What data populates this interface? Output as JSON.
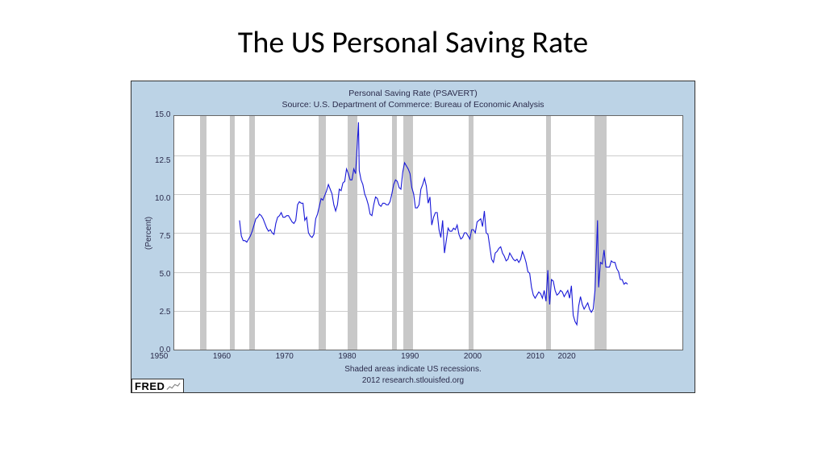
{
  "slide": {
    "title": "The US Personal Saving Rate",
    "title_fontsize": 38,
    "title_color": "#000000"
  },
  "chart": {
    "type": "line",
    "outer_background": "#bcd3e6",
    "plot_background": "#ffffff",
    "border_color": "#333333",
    "grid_color": "#cccccc",
    "title_line1": "Personal Saving Rate (PSAVERT)",
    "title_line2": "Source: U.S. Department of Commerce: Bureau of Economic Analysis",
    "title_fontsize": 10.5,
    "title_color": "#2a2a4a",
    "ylabel": "(Percent)",
    "label_fontsize": 10,
    "xlim": [
      1950,
      2020
    ],
    "ylim": [
      0,
      15
    ],
    "ytick_step": 2.5,
    "yticks": [
      "15.0",
      "12.5",
      "10.0",
      "7.5",
      "5.0",
      "2.5",
      "0.0"
    ],
    "xtick_step": 10,
    "xticks": [
      "1950",
      "1960",
      "1970",
      "1980",
      "1990",
      "2000",
      "2010",
      "2020"
    ],
    "line_color": "#1818d8",
    "line_width": 1.1,
    "recession_color": "#c8c8c8",
    "recessions": [
      [
        1953.5,
        1954.4
      ],
      [
        1957.6,
        1958.3
      ],
      [
        1960.3,
        1961.1
      ],
      [
        1969.9,
        1970.9
      ],
      [
        1973.9,
        1975.2
      ],
      [
        1980.0,
        1980.6
      ],
      [
        1981.5,
        1982.9
      ],
      [
        1990.5,
        1991.2
      ],
      [
        2001.2,
        2001.9
      ],
      [
        2007.9,
        2009.5
      ]
    ],
    "footer_line1": "Shaded areas indicate US recessions.",
    "footer_line2": "2012 research.stlouisfed.org",
    "footer_fontsize": 10,
    "logo_text": "FRED",
    "series": [
      [
        1959.0,
        8.3
      ],
      [
        1959.25,
        7.3
      ],
      [
        1959.5,
        7.0
      ],
      [
        1959.75,
        7.0
      ],
      [
        1960.0,
        6.9
      ],
      [
        1960.25,
        7.1
      ],
      [
        1960.5,
        7.3
      ],
      [
        1960.75,
        7.6
      ],
      [
        1961.0,
        8.0
      ],
      [
        1961.25,
        8.4
      ],
      [
        1961.5,
        8.5
      ],
      [
        1961.75,
        8.7
      ],
      [
        1962.0,
        8.6
      ],
      [
        1962.25,
        8.4
      ],
      [
        1962.5,
        8.1
      ],
      [
        1962.75,
        7.8
      ],
      [
        1963.0,
        7.6
      ],
      [
        1963.25,
        7.7
      ],
      [
        1963.5,
        7.5
      ],
      [
        1963.75,
        7.4
      ],
      [
        1964.0,
        8.1
      ],
      [
        1964.25,
        8.5
      ],
      [
        1964.5,
        8.6
      ],
      [
        1964.75,
        8.8
      ],
      [
        1965.0,
        8.5
      ],
      [
        1965.25,
        8.5
      ],
      [
        1965.5,
        8.6
      ],
      [
        1965.75,
        8.6
      ],
      [
        1966.0,
        8.4
      ],
      [
        1966.25,
        8.2
      ],
      [
        1966.5,
        8.1
      ],
      [
        1966.75,
        8.3
      ],
      [
        1967.0,
        9.3
      ],
      [
        1967.25,
        9.5
      ],
      [
        1967.5,
        9.4
      ],
      [
        1967.75,
        9.4
      ],
      [
        1968.0,
        8.3
      ],
      [
        1968.25,
        8.5
      ],
      [
        1968.5,
        7.5
      ],
      [
        1968.75,
        7.3
      ],
      [
        1969.0,
        7.2
      ],
      [
        1969.25,
        7.4
      ],
      [
        1969.5,
        8.4
      ],
      [
        1969.75,
        8.7
      ],
      [
        1970.0,
        9.2
      ],
      [
        1970.25,
        9.7
      ],
      [
        1970.5,
        9.6
      ],
      [
        1970.75,
        9.9
      ],
      [
        1971.0,
        10.2
      ],
      [
        1971.25,
        10.6
      ],
      [
        1971.5,
        10.3
      ],
      [
        1971.75,
        10.0
      ],
      [
        1972.0,
        9.3
      ],
      [
        1972.25,
        8.9
      ],
      [
        1972.5,
        9.3
      ],
      [
        1972.75,
        10.3
      ],
      [
        1973.0,
        10.2
      ],
      [
        1973.25,
        10.7
      ],
      [
        1973.5,
        10.8
      ],
      [
        1973.75,
        11.6
      ],
      [
        1974.0,
        11.3
      ],
      [
        1974.25,
        10.9
      ],
      [
        1974.5,
        10.9
      ],
      [
        1974.75,
        11.6
      ],
      [
        1975.0,
        11.3
      ],
      [
        1975.4,
        14.6
      ],
      [
        1975.5,
        11.5
      ],
      [
        1975.75,
        10.9
      ],
      [
        1976.0,
        10.6
      ],
      [
        1976.25,
        10.0
      ],
      [
        1976.5,
        9.7
      ],
      [
        1976.75,
        9.3
      ],
      [
        1977.0,
        8.7
      ],
      [
        1977.25,
        8.6
      ],
      [
        1977.5,
        9.3
      ],
      [
        1977.75,
        9.8
      ],
      [
        1978.0,
        9.7
      ],
      [
        1978.25,
        9.3
      ],
      [
        1978.5,
        9.2
      ],
      [
        1978.75,
        9.4
      ],
      [
        1979.0,
        9.4
      ],
      [
        1979.25,
        9.3
      ],
      [
        1979.5,
        9.3
      ],
      [
        1979.75,
        9.5
      ],
      [
        1980.0,
        10.0
      ],
      [
        1980.25,
        10.6
      ],
      [
        1980.5,
        10.9
      ],
      [
        1980.75,
        10.8
      ],
      [
        1981.0,
        10.4
      ],
      [
        1981.25,
        10.3
      ],
      [
        1981.5,
        11.4
      ],
      [
        1981.75,
        12.0
      ],
      [
        1982.0,
        11.8
      ],
      [
        1982.25,
        11.6
      ],
      [
        1982.5,
        11.3
      ],
      [
        1982.75,
        10.4
      ],
      [
        1983.0,
        10.0
      ],
      [
        1983.25,
        9.1
      ],
      [
        1983.5,
        9.1
      ],
      [
        1983.75,
        9.3
      ],
      [
        1984.0,
        10.3
      ],
      [
        1984.25,
        10.6
      ],
      [
        1984.5,
        11.0
      ],
      [
        1984.75,
        10.5
      ],
      [
        1985.0,
        9.4
      ],
      [
        1985.25,
        9.8
      ],
      [
        1985.5,
        8.0
      ],
      [
        1985.75,
        8.5
      ],
      [
        1986.0,
        8.8
      ],
      [
        1986.25,
        8.8
      ],
      [
        1986.5,
        7.7
      ],
      [
        1986.75,
        7.2
      ],
      [
        1987.0,
        8.3
      ],
      [
        1987.25,
        6.2
      ],
      [
        1987.5,
        7.0
      ],
      [
        1987.75,
        7.8
      ],
      [
        1988.0,
        7.6
      ],
      [
        1988.25,
        7.6
      ],
      [
        1988.5,
        7.8
      ],
      [
        1988.75,
        7.7
      ],
      [
        1989.0,
        8.0
      ],
      [
        1989.25,
        7.4
      ],
      [
        1989.5,
        7.1
      ],
      [
        1989.75,
        7.2
      ],
      [
        1990.0,
        7.5
      ],
      [
        1990.25,
        7.5
      ],
      [
        1990.5,
        7.3
      ],
      [
        1990.75,
        7.1
      ],
      [
        1991.0,
        7.7
      ],
      [
        1991.25,
        7.7
      ],
      [
        1991.5,
        7.5
      ],
      [
        1991.75,
        8.2
      ],
      [
        1992.0,
        8.3
      ],
      [
        1992.25,
        8.4
      ],
      [
        1992.5,
        7.9
      ],
      [
        1992.75,
        8.9
      ],
      [
        1993.0,
        7.5
      ],
      [
        1993.25,
        7.4
      ],
      [
        1993.5,
        6.6
      ],
      [
        1993.75,
        5.8
      ],
      [
        1994.0,
        5.6
      ],
      [
        1994.25,
        6.2
      ],
      [
        1994.5,
        6.3
      ],
      [
        1994.75,
        6.5
      ],
      [
        1995.0,
        6.6
      ],
      [
        1995.25,
        6.2
      ],
      [
        1995.5,
        6.0
      ],
      [
        1995.75,
        5.7
      ],
      [
        1996.0,
        5.8
      ],
      [
        1996.25,
        6.2
      ],
      [
        1996.5,
        6.0
      ],
      [
        1996.75,
        5.8
      ],
      [
        1997.0,
        5.7
      ],
      [
        1997.25,
        5.8
      ],
      [
        1997.5,
        5.6
      ],
      [
        1997.75,
        5.8
      ],
      [
        1998.0,
        6.3
      ],
      [
        1998.25,
        6.0
      ],
      [
        1998.5,
        5.6
      ],
      [
        1998.75,
        5.0
      ],
      [
        1999.0,
        4.9
      ],
      [
        1999.25,
        4.0
      ],
      [
        1999.5,
        3.5
      ],
      [
        1999.75,
        3.3
      ],
      [
        2000.0,
        3.5
      ],
      [
        2000.25,
        3.7
      ],
      [
        2000.5,
        3.6
      ],
      [
        2000.75,
        3.3
      ],
      [
        2001.0,
        3.8
      ],
      [
        2001.25,
        3.1
      ],
      [
        2001.5,
        5.1
      ],
      [
        2001.75,
        2.9
      ],
      [
        2002.0,
        4.5
      ],
      [
        2002.25,
        4.4
      ],
      [
        2002.5,
        3.8
      ],
      [
        2002.75,
        3.5
      ],
      [
        2003.0,
        3.6
      ],
      [
        2003.25,
        3.8
      ],
      [
        2003.5,
        3.7
      ],
      [
        2003.75,
        3.4
      ],
      [
        2004.0,
        3.6
      ],
      [
        2004.25,
        3.8
      ],
      [
        2004.5,
        3.3
      ],
      [
        2004.75,
        4.1
      ],
      [
        2005.0,
        2.2
      ],
      [
        2005.25,
        1.8
      ],
      [
        2005.5,
        1.6
      ],
      [
        2005.75,
        2.8
      ],
      [
        2006.0,
        3.4
      ],
      [
        2006.25,
        2.9
      ],
      [
        2006.5,
        2.6
      ],
      [
        2006.75,
        2.8
      ],
      [
        2007.0,
        3.0
      ],
      [
        2007.25,
        2.6
      ],
      [
        2007.5,
        2.4
      ],
      [
        2007.75,
        2.6
      ],
      [
        2008.0,
        3.8
      ],
      [
        2008.35,
        8.3
      ],
      [
        2008.5,
        4.0
      ],
      [
        2008.75,
        5.6
      ],
      [
        2009.0,
        5.5
      ],
      [
        2009.25,
        6.4
      ],
      [
        2009.5,
        5.3
      ],
      [
        2009.75,
        5.3
      ],
      [
        2010.0,
        5.3
      ],
      [
        2010.25,
        5.7
      ],
      [
        2010.5,
        5.6
      ],
      [
        2010.75,
        5.6
      ],
      [
        2011.0,
        5.2
      ],
      [
        2011.25,
        5.0
      ],
      [
        2011.5,
        4.5
      ],
      [
        2011.75,
        4.5
      ],
      [
        2012.0,
        4.2
      ],
      [
        2012.25,
        4.3
      ],
      [
        2012.5,
        4.2
      ]
    ]
  }
}
